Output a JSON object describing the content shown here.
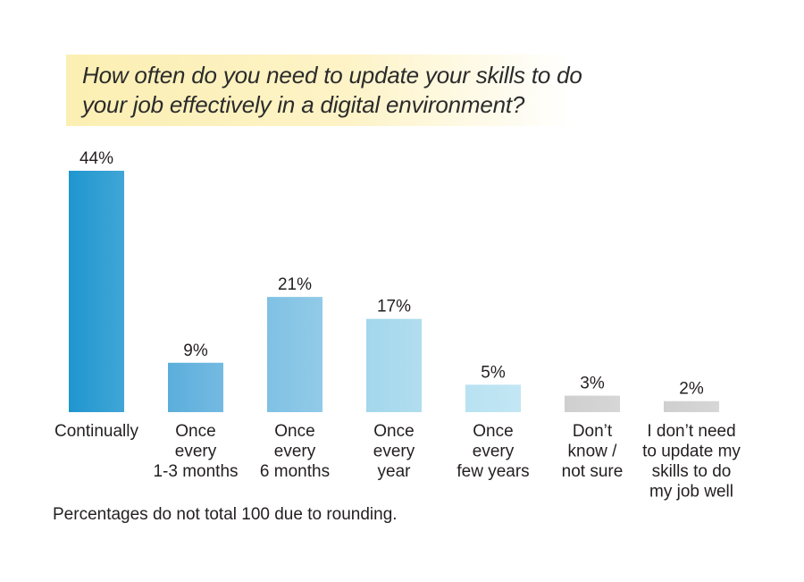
{
  "chart_data": {
    "type": "bar",
    "title": "How often do you need to update your skills to do your job effectively in a digital environment?",
    "categories": [
      [
        "Continually"
      ],
      [
        "Once",
        "every",
        "1-3 months"
      ],
      [
        "Once",
        "every",
        "6 months"
      ],
      [
        "Once",
        "every",
        "year"
      ],
      [
        "Once",
        "every",
        "few years"
      ],
      [
        "Don’t",
        "know /",
        "not sure"
      ],
      [
        "I don’t need",
        "to update my",
        "skills to do",
        "my job well"
      ]
    ],
    "values": [
      44,
      9,
      21,
      17,
      5,
      3,
      2
    ],
    "value_labels": [
      "44%",
      "9%",
      "21%",
      "17%",
      "5%",
      "3%",
      "2%"
    ],
    "ylim": [
      0,
      44
    ],
    "grid": false,
    "colors": [
      "#1f96cf",
      "#5baedc",
      "#7fc1e4",
      "#a3d7ec",
      "#b8e2f2",
      "#cfcfcf",
      "#cfcfcf"
    ]
  },
  "footnote": "Percentages do not total 100 due to rounding."
}
